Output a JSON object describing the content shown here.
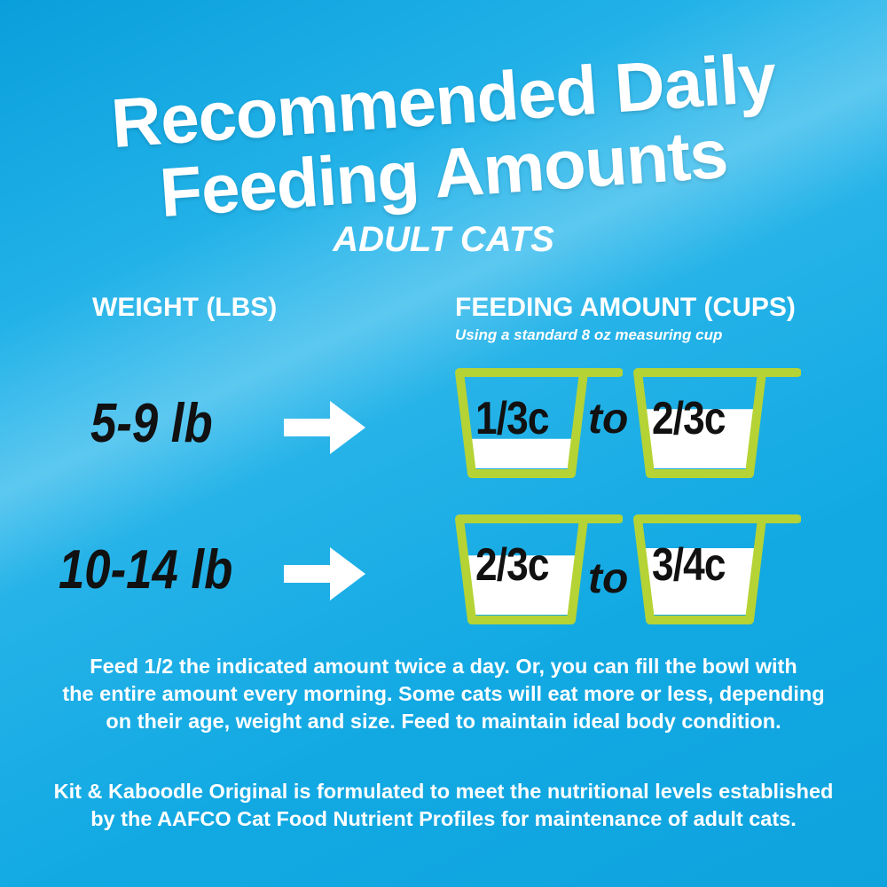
{
  "title": {
    "line1": "Recommended Daily",
    "line2": "Feeding Amounts",
    "subtitle": "ADULT CATS"
  },
  "headers": {
    "weight": "WEIGHT (LBS)",
    "amount": "FEEDING AMOUNT (CUPS)",
    "amount_note": "Using a standard 8 oz measuring cup"
  },
  "colors": {
    "background": "#12a9e3",
    "cup_outline": "#b5d334",
    "text_dark": "#111111"
  },
  "rows": [
    {
      "weight": "5-9 lb",
      "arrow_icon": "right-arrow",
      "min": {
        "label": "1/3c",
        "fill": 0.333
      },
      "connector": "to",
      "max": {
        "label": "2/3c",
        "fill": 0.667
      }
    },
    {
      "weight": "10-14 lb",
      "arrow_icon": "right-arrow",
      "min": {
        "label": "2/3c",
        "fill": 0.667
      },
      "connector": "to",
      "max": {
        "label": "3/4c",
        "fill": 0.75
      }
    }
  ],
  "instructions": [
    "Feed 1/2 the indicated amount twice a day. Or, you can fill the bowl with",
    "the entire amount every morning. Some cats will eat more or less, depending",
    "on their age, weight and size. Feed to maintain ideal body condition."
  ],
  "disclaimer": [
    "Kit & Kaboodle Original is formulated to meet the nutritional levels established",
    "by the AAFCO Cat Food Nutrient Profiles for maintenance of adult cats."
  ]
}
